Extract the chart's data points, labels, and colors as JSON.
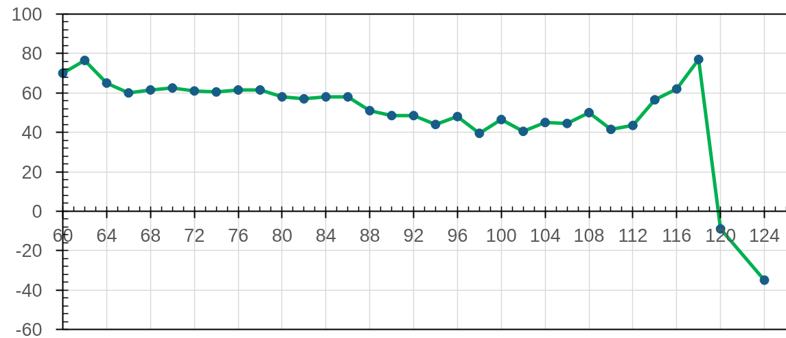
{
  "chart_data": {
    "type": "line",
    "x": [
      60,
      62,
      64,
      66,
      68,
      70,
      72,
      74,
      76,
      78,
      80,
      82,
      84,
      86,
      88,
      90,
      92,
      94,
      96,
      98,
      100,
      102,
      104,
      106,
      108,
      110,
      112,
      114,
      116,
      118,
      120,
      124
    ],
    "series": [
      {
        "color": "#00b050",
        "marker": "none",
        "values": [
          70,
          76.5,
          65,
          60,
          61.5,
          62.5,
          61,
          60.5,
          61.5,
          61.5,
          58,
          57,
          58,
          58,
          51,
          48.5,
          48.5,
          44,
          48,
          39.5,
          46.5,
          40.5,
          45,
          44.5,
          50,
          41.5,
          43.5,
          56.5,
          62,
          77,
          -9,
          -35
        ]
      },
      {
        "type": "scatter",
        "color": "#175d87",
        "marker": "circle",
        "values": [
          70,
          76.5,
          65,
          60,
          61.5,
          62.5,
          61,
          60.5,
          61.5,
          61.5,
          58,
          57,
          58,
          58,
          51,
          48.5,
          48.5,
          44,
          48,
          39.5,
          46.5,
          40.5,
          45,
          44.5,
          50,
          41.5,
          43.5,
          56.5,
          62,
          77,
          -9,
          -35
        ]
      }
    ],
    "xlim": [
      60,
      126
    ],
    "ylim": [
      -60,
      100
    ],
    "xticks": [
      60,
      64,
      68,
      72,
      76,
      80,
      84,
      88,
      92,
      96,
      100,
      104,
      108,
      112,
      116,
      120,
      124
    ],
    "yticks": [
      -60,
      -40,
      -20,
      0,
      20,
      40,
      60,
      80,
      100
    ],
    "grid": true,
    "line_style": "solid"
  }
}
